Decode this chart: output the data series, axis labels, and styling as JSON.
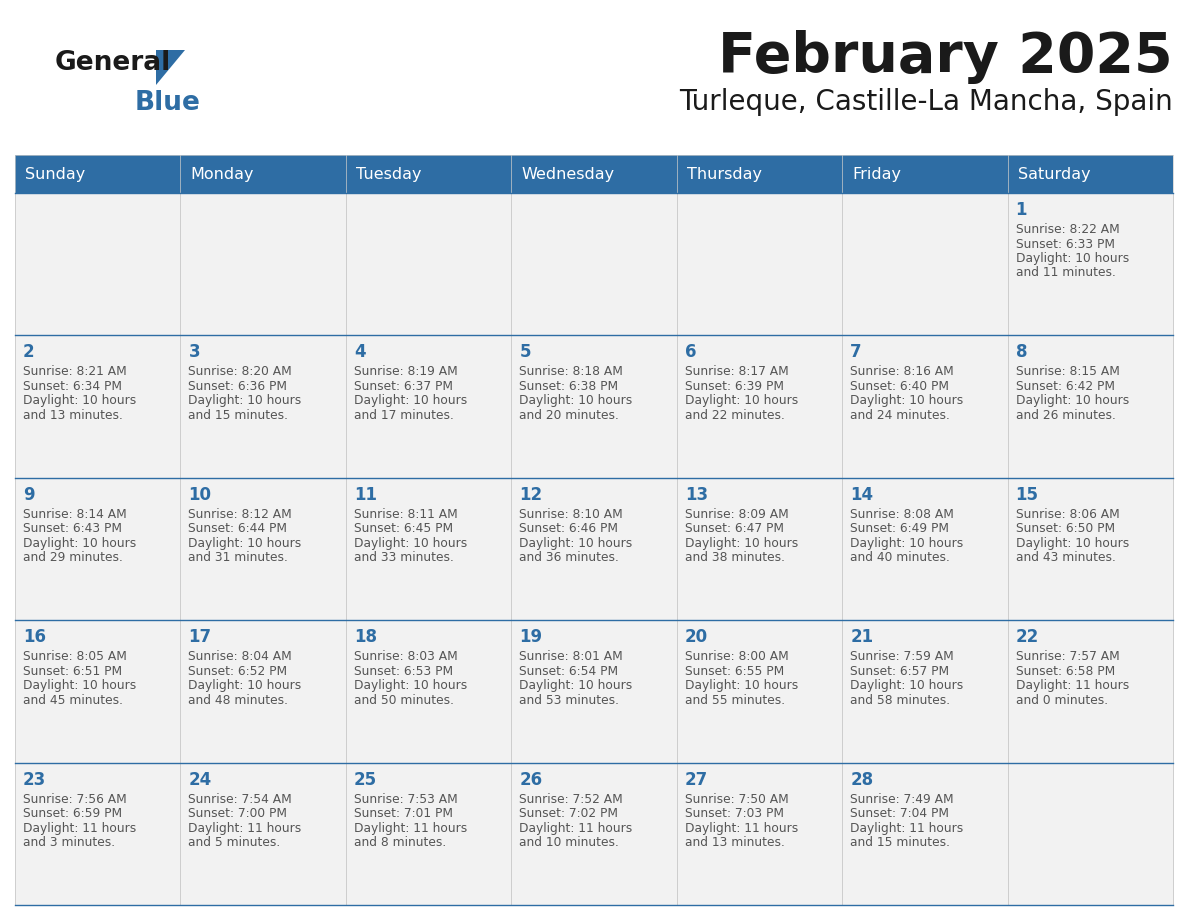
{
  "title": "February 2025",
  "subtitle": "Turleque, Castille-La Mancha, Spain",
  "header_bg": "#2E6DA4",
  "header_text_color": "#FFFFFF",
  "cell_bg": "#F2F2F2",
  "day_headers": [
    "Sunday",
    "Monday",
    "Tuesday",
    "Wednesday",
    "Thursday",
    "Friday",
    "Saturday"
  ],
  "title_color": "#1a1a1a",
  "subtitle_color": "#1a1a1a",
  "day_num_color": "#2E6DA4",
  "cell_text_color": "#555555",
  "grid_color": "#CCCCCC",
  "line_color": "#2E6DA4",
  "logo_general_color": "#1a1a1a",
  "logo_blue_color": "#2E6DA4",
  "logo_triangle_color": "#2E6DA4",
  "weeks": [
    [
      null,
      null,
      null,
      null,
      null,
      null,
      {
        "day": 1,
        "sunrise": "8:22 AM",
        "sunset": "6:33 PM",
        "daylight": "10 hours and 11 minutes."
      }
    ],
    [
      {
        "day": 2,
        "sunrise": "8:21 AM",
        "sunset": "6:34 PM",
        "daylight": "10 hours and 13 minutes."
      },
      {
        "day": 3,
        "sunrise": "8:20 AM",
        "sunset": "6:36 PM",
        "daylight": "10 hours and 15 minutes."
      },
      {
        "day": 4,
        "sunrise": "8:19 AM",
        "sunset": "6:37 PM",
        "daylight": "10 hours and 17 minutes."
      },
      {
        "day": 5,
        "sunrise": "8:18 AM",
        "sunset": "6:38 PM",
        "daylight": "10 hours and 20 minutes."
      },
      {
        "day": 6,
        "sunrise": "8:17 AM",
        "sunset": "6:39 PM",
        "daylight": "10 hours and 22 minutes."
      },
      {
        "day": 7,
        "sunrise": "8:16 AM",
        "sunset": "6:40 PM",
        "daylight": "10 hours and 24 minutes."
      },
      {
        "day": 8,
        "sunrise": "8:15 AM",
        "sunset": "6:42 PM",
        "daylight": "10 hours and 26 minutes."
      }
    ],
    [
      {
        "day": 9,
        "sunrise": "8:14 AM",
        "sunset": "6:43 PM",
        "daylight": "10 hours and 29 minutes."
      },
      {
        "day": 10,
        "sunrise": "8:12 AM",
        "sunset": "6:44 PM",
        "daylight": "10 hours and 31 minutes."
      },
      {
        "day": 11,
        "sunrise": "8:11 AM",
        "sunset": "6:45 PM",
        "daylight": "10 hours and 33 minutes."
      },
      {
        "day": 12,
        "sunrise": "8:10 AM",
        "sunset": "6:46 PM",
        "daylight": "10 hours and 36 minutes."
      },
      {
        "day": 13,
        "sunrise": "8:09 AM",
        "sunset": "6:47 PM",
        "daylight": "10 hours and 38 minutes."
      },
      {
        "day": 14,
        "sunrise": "8:08 AM",
        "sunset": "6:49 PM",
        "daylight": "10 hours and 40 minutes."
      },
      {
        "day": 15,
        "sunrise": "8:06 AM",
        "sunset": "6:50 PM",
        "daylight": "10 hours and 43 minutes."
      }
    ],
    [
      {
        "day": 16,
        "sunrise": "8:05 AM",
        "sunset": "6:51 PM",
        "daylight": "10 hours and 45 minutes."
      },
      {
        "day": 17,
        "sunrise": "8:04 AM",
        "sunset": "6:52 PM",
        "daylight": "10 hours and 48 minutes."
      },
      {
        "day": 18,
        "sunrise": "8:03 AM",
        "sunset": "6:53 PM",
        "daylight": "10 hours and 50 minutes."
      },
      {
        "day": 19,
        "sunrise": "8:01 AM",
        "sunset": "6:54 PM",
        "daylight": "10 hours and 53 minutes."
      },
      {
        "day": 20,
        "sunrise": "8:00 AM",
        "sunset": "6:55 PM",
        "daylight": "10 hours and 55 minutes."
      },
      {
        "day": 21,
        "sunrise": "7:59 AM",
        "sunset": "6:57 PM",
        "daylight": "10 hours and 58 minutes."
      },
      {
        "day": 22,
        "sunrise": "7:57 AM",
        "sunset": "6:58 PM",
        "daylight": "11 hours and 0 minutes."
      }
    ],
    [
      {
        "day": 23,
        "sunrise": "7:56 AM",
        "sunset": "6:59 PM",
        "daylight": "11 hours and 3 minutes."
      },
      {
        "day": 24,
        "sunrise": "7:54 AM",
        "sunset": "7:00 PM",
        "daylight": "11 hours and 5 minutes."
      },
      {
        "day": 25,
        "sunrise": "7:53 AM",
        "sunset": "7:01 PM",
        "daylight": "11 hours and 8 minutes."
      },
      {
        "day": 26,
        "sunrise": "7:52 AM",
        "sunset": "7:02 PM",
        "daylight": "11 hours and 10 minutes."
      },
      {
        "day": 27,
        "sunrise": "7:50 AM",
        "sunset": "7:03 PM",
        "daylight": "11 hours and 13 minutes."
      },
      {
        "day": 28,
        "sunrise": "7:49 AM",
        "sunset": "7:04 PM",
        "daylight": "11 hours and 15 minutes."
      },
      null
    ]
  ]
}
